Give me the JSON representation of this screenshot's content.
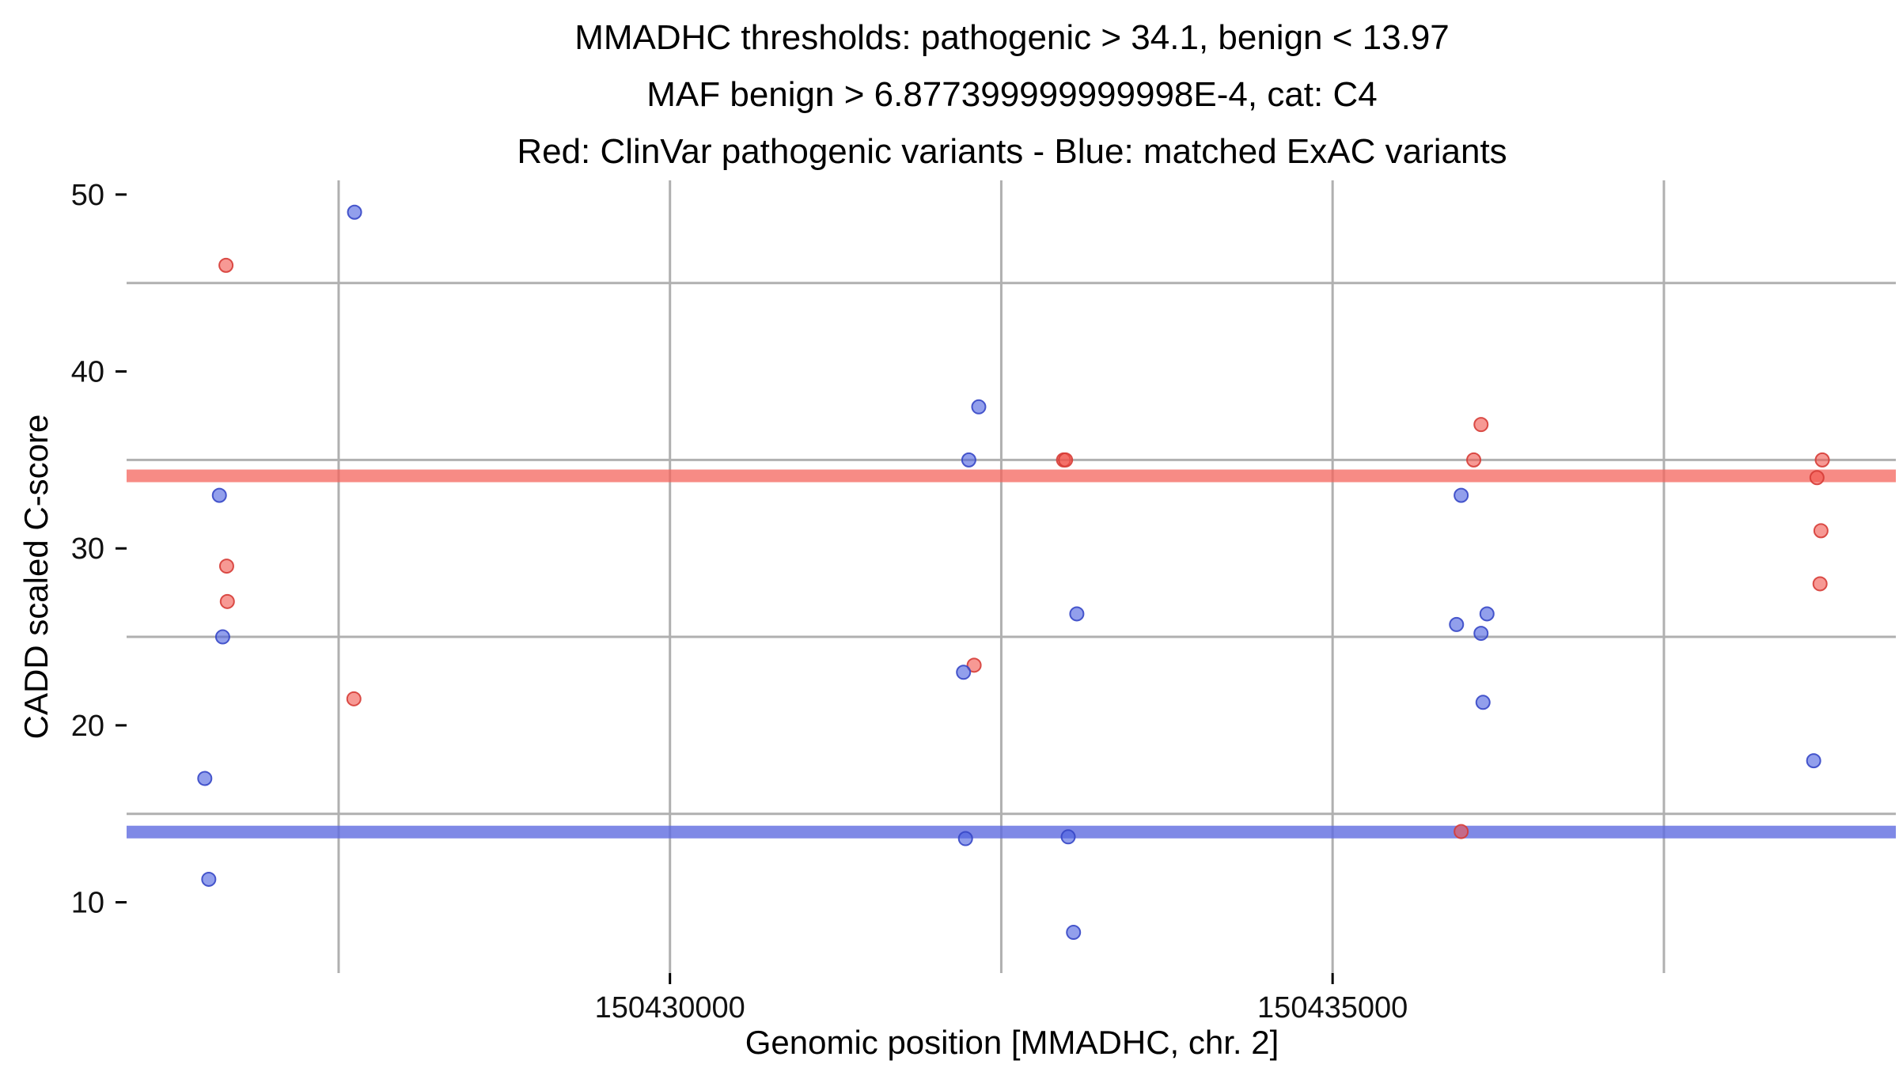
{
  "chart_data": {
    "type": "scatter",
    "title_lines": [
      "MMADHC thresholds: pathogenic > 34.1, benign < 13.97",
      "MAF benign > 6.877399999999998E-4, cat: C4",
      "Red: ClinVar pathogenic variants - Blue: matched ExAC variants"
    ],
    "xlabel": "Genomic position [MMADHC, chr. 2]",
    "ylabel": "CADD scaled C-score",
    "xlim": [
      150425900,
      150439250
    ],
    "ylim": [
      6,
      50.8
    ],
    "x_ticks": [
      {
        "value": 150430000,
        "label": "150430000"
      },
      {
        "value": 150435000,
        "label": "150435000"
      }
    ],
    "y_ticks": [
      {
        "value": 10,
        "label": "10"
      },
      {
        "value": 20,
        "label": "20"
      },
      {
        "value": 30,
        "label": "30"
      },
      {
        "value": 40,
        "label": "40"
      },
      {
        "value": 50,
        "label": "50"
      }
    ],
    "grid_x": [
      150427500,
      150430000,
      150432500,
      150435000,
      150437500
    ],
    "grid_y": [
      15,
      25,
      35,
      45
    ],
    "grid_on": true,
    "legend_position": "none",
    "thresholds": [
      {
        "key": "pathogenic",
        "label": "pathogenic > 34.1",
        "value": 34.1,
        "color": "#f4645c",
        "opacity": 0.75
      },
      {
        "key": "benign",
        "label": "benign < 13.97",
        "value": 13.97,
        "color": "#5f6ce0",
        "opacity": 0.8
      }
    ],
    "series": [
      {
        "key": "clinvar-pathogenic",
        "name": "ClinVar pathogenic variants",
        "fill": "#f2554d",
        "fill_opacity": 0.6,
        "stroke": "#d63c36",
        "points": [
          [
            150426650,
            46
          ],
          [
            150426655,
            29
          ],
          [
            150426660,
            27
          ],
          [
            150427615,
            21.5
          ],
          [
            150432295,
            23.4
          ],
          [
            150432970,
            35
          ],
          [
            150432985,
            35
          ],
          [
            150436120,
            37
          ],
          [
            150436065,
            35
          ],
          [
            150435970,
            14
          ],
          [
            150438695,
            35
          ],
          [
            150438655,
            34
          ],
          [
            150438685,
            31
          ],
          [
            150438678,
            28
          ]
        ]
      },
      {
        "key": "exac-matched",
        "name": "matched ExAC variants",
        "fill": "#4a5fe0",
        "fill_opacity": 0.6,
        "stroke": "#3647c6",
        "points": [
          [
            150426600,
            33
          ],
          [
            150426625,
            25
          ],
          [
            150426490,
            17
          ],
          [
            150426520,
            11.3
          ],
          [
            150427620,
            49
          ],
          [
            150432330,
            38
          ],
          [
            150432255,
            35
          ],
          [
            150432215,
            23
          ],
          [
            150432230,
            13.6
          ],
          [
            150433070,
            26.3
          ],
          [
            150433005,
            13.7
          ],
          [
            150433045,
            8.3
          ],
          [
            150435970,
            33
          ],
          [
            150435935,
            25.7
          ],
          [
            150436165,
            26.3
          ],
          [
            150436120,
            25.2
          ],
          [
            150436135,
            21.3
          ],
          [
            150438630,
            18
          ]
        ]
      }
    ],
    "colors": {
      "grid": "#b0b0b0",
      "tick": "#000000",
      "tick_label": "#111111",
      "background": "#ffffff"
    }
  }
}
